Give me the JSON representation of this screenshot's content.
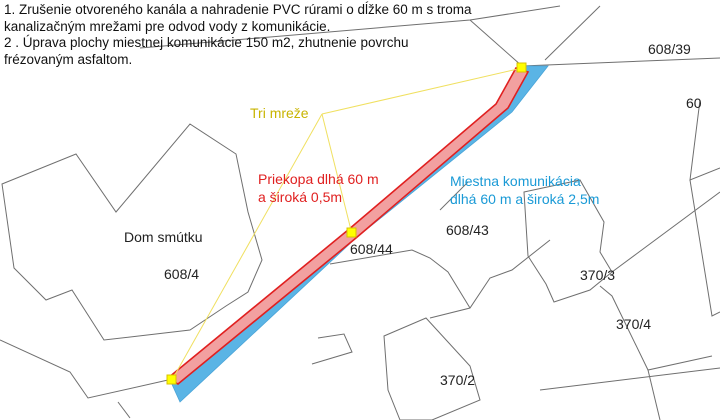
{
  "notes": [
    "1. Zrušenie otvoreného kanála a nahradenie PVC rúrami o dĺžke 60 m s troma",
    "kanalizačným mrežami pre odvod vody z komunikácie.",
    "2 . Úprava plochy miestnej komunikácie 150 m2, zhutnenie  povrchu",
    "frézovaným asfaltom."
  ],
  "labels": {
    "grates": "Tri mreže",
    "ditch_line1": "Priekopa dlhá 60 m",
    "ditch_line2": "a široká 0,5m",
    "road_line1": "Miestna komunikácia",
    "road_line2": "dlhá 60 m a široká 2,5m",
    "building": "Dom smútku"
  },
  "parcels": {
    "p608_39": "608/39",
    "p60": "60",
    "p608_44": "608/44",
    "p608_43": "608/43",
    "p608_4": "608/4",
    "p370_3": "370/3",
    "p370_4": "370/4",
    "p370_2": "370/2"
  },
  "colors": {
    "road": "#5ab4e5",
    "ditch_fill": "#f2a0a0",
    "ditch_line": "#e02020",
    "grate_fill": "#ffff00",
    "grate_line": "#d9c300",
    "grates_label": "#c8b400",
    "ditch_label": "#e02020",
    "road_label": "#1a9ad6",
    "parcel_line": "#6f6f6f"
  }
}
